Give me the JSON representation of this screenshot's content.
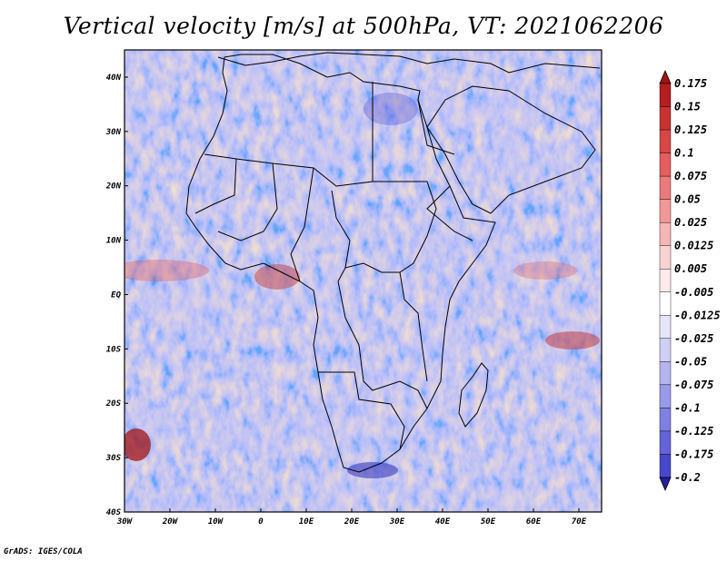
{
  "title": "Vertical velocity [m/s] at 500hPa, VT: 2021062206",
  "footer": "GrADS: IGES/COLA",
  "map": {
    "lon_range": [
      -30,
      75
    ],
    "lat_range": [
      -40,
      45
    ],
    "lat_ticks": [
      {
        "value": 40,
        "label": "40N"
      },
      {
        "value": 30,
        "label": "30N"
      },
      {
        "value": 20,
        "label": "20N"
      },
      {
        "value": 10,
        "label": "10N"
      },
      {
        "value": 0,
        "label": "EQ"
      },
      {
        "value": -10,
        "label": "10S"
      },
      {
        "value": -20,
        "label": "20S"
      },
      {
        "value": -30,
        "label": "30S"
      },
      {
        "value": -40,
        "label": "40S"
      }
    ],
    "lon_ticks": [
      {
        "value": -30,
        "label": "30W"
      },
      {
        "value": -20,
        "label": "20W"
      },
      {
        "value": -10,
        "label": "10W"
      },
      {
        "value": 0,
        "label": "0"
      },
      {
        "value": 10,
        "label": "10E"
      },
      {
        "value": 20,
        "label": "20E"
      },
      {
        "value": 30,
        "label": "30E"
      },
      {
        "value": 40,
        "label": "40E"
      },
      {
        "value": 50,
        "label": "50E"
      },
      {
        "value": 60,
        "label": "60E"
      },
      {
        "value": 70,
        "label": "70E"
      }
    ]
  },
  "colorbar": {
    "levels": [
      {
        "label": "0.175",
        "color": "#b41e1e"
      },
      {
        "label": "0.15",
        "color": "#c83232"
      },
      {
        "label": "0.125",
        "color": "#d84646"
      },
      {
        "label": "0.1",
        "color": "#e45e5e"
      },
      {
        "label": "0.075",
        "color": "#ec7a7a"
      },
      {
        "label": "0.05",
        "color": "#f29898"
      },
      {
        "label": "0.025",
        "color": "#f6b6b6"
      },
      {
        "label": "0.0125",
        "color": "#fad2d2"
      },
      {
        "label": "0.005",
        "color": "#fdeaea"
      },
      {
        "label": "-0.005",
        "color": "#ffffff"
      },
      {
        "label": "-0.0125",
        "color": "#e6e6fa"
      },
      {
        "label": "-0.025",
        "color": "#cfcff6"
      },
      {
        "label": "-0.05",
        "color": "#b4b4f0"
      },
      {
        "label": "-0.075",
        "color": "#9a9aea"
      },
      {
        "label": "-0.1",
        "color": "#8080e2"
      },
      {
        "label": "-0.125",
        "color": "#6464d8"
      },
      {
        "label": "-0.175",
        "color": "#4848cc"
      },
      {
        "label": "-0.2",
        "color": "#3030b8"
      }
    ],
    "top_color": "#a01414",
    "bottom_color": "#2020a0"
  }
}
